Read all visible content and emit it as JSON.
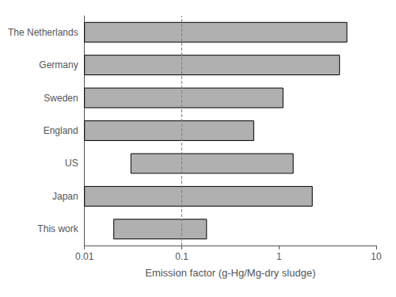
{
  "chart_data": {
    "type": "bar",
    "orientation": "horizontal",
    "log": "x",
    "categories": [
      "This work",
      "Japan",
      "US",
      "England",
      "Sweden",
      "Germany",
      "The Netherlands"
    ],
    "starts": [
      0.02,
      0.01,
      0.03,
      0.01,
      0.01,
      0.01,
      0.01
    ],
    "ends": [
      0.18,
      2.2,
      1.4,
      0.55,
      1.1,
      4.2,
      5.0
    ],
    "color": "#b0b0b0",
    "edge_color": "#000000",
    "xlabel": "Emission factor (g-Hg/Mg-dry sludge)",
    "xlim": [
      0.01,
      10
    ],
    "xticks": [
      0.01,
      0.1,
      1,
      10
    ],
    "vline_x": 0.1,
    "grid": false
  }
}
